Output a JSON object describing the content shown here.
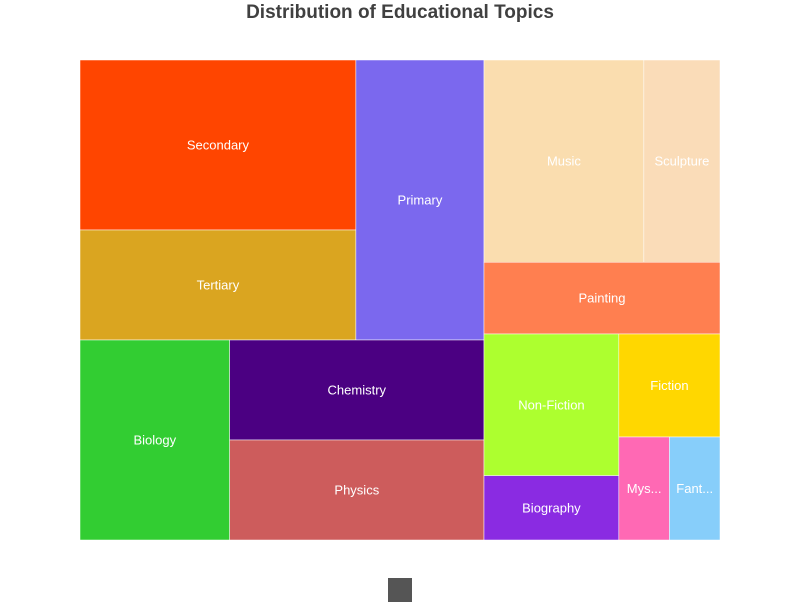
{
  "chart_data": {
    "type": "treemap",
    "title": "Distribution of Educational Topics",
    "groups": [
      {
        "name": "",
        "items": [
          {
            "name": "Secondary",
            "value": 17,
            "color": "#FF4500"
          },
          {
            "name": "Tertiary",
            "value": 11,
            "color": "#DAA520"
          },
          {
            "name": "Primary",
            "value": 13,
            "color": "#7B68EE"
          }
        ]
      },
      {
        "name": "",
        "items": [
          {
            "name": "Biology",
            "value": 10,
            "color": "#32CD32"
          },
          {
            "name": "Chemistry",
            "value": 8.5,
            "color": "#4B0082"
          },
          {
            "name": "Physics",
            "value": 8.5,
            "color": "#CD5C5C"
          }
        ]
      },
      {
        "name": "",
        "items": [
          {
            "name": "Music",
            "value": 10.5,
            "color": "#FADDAF"
          },
          {
            "name": "Sculpture",
            "value": 5,
            "color": "#FADCB8"
          },
          {
            "name": "Painting",
            "value": 5.5,
            "color": "#FF7F50"
          }
        ]
      },
      {
        "name": "",
        "items": [
          {
            "name": "Non-Fiction",
            "value": 5.5,
            "color": "#ADFF2F"
          },
          {
            "name": "Biography",
            "value": 2.5,
            "color": "#8A2BE2"
          },
          {
            "name": "Fiction",
            "value": 3,
            "color": "#FFD700"
          },
          {
            "name": "Mystery",
            "value": 1.5,
            "color": "#FF69B4",
            "display": "Mys..."
          },
          {
            "name": "Fantasy",
            "value": 1.5,
            "color": "#87CEFA",
            "display": "Fant..."
          }
        ]
      }
    ],
    "legend": {
      "swatch_color": "#555555"
    }
  }
}
